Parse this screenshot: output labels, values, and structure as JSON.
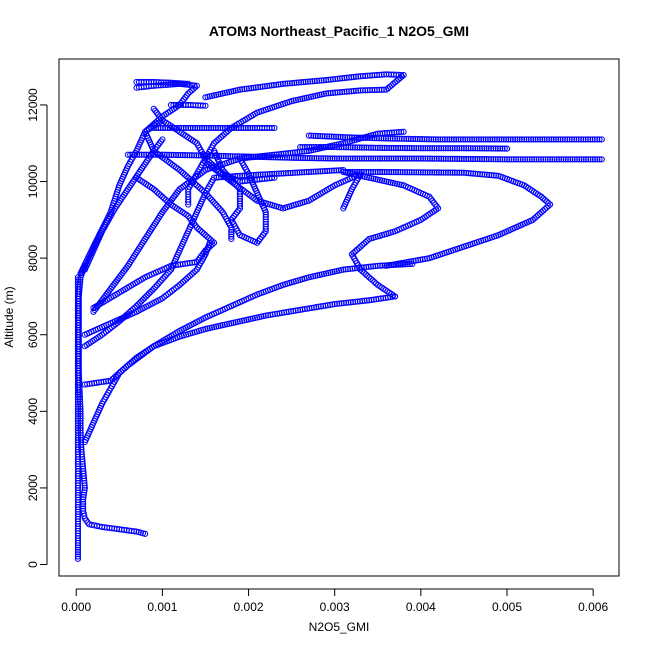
{
  "chart_data": {
    "type": "scatter",
    "title": "ATOM3 Northeast_Pacific_1 N2O5_GMI",
    "xlabel": "N2O5_GMI",
    "ylabel": "Altitude (m)",
    "xlim": [
      -0.0002,
      0.0063
    ],
    "ylim": [
      -300,
      13200
    ],
    "x_ticks": [
      0.0,
      0.001,
      0.002,
      0.003,
      0.004,
      0.005,
      0.006
    ],
    "x_tick_labels": [
      "0.000",
      "0.001",
      "0.002",
      "0.003",
      "0.004",
      "0.005",
      "0.006"
    ],
    "y_ticks": [
      0,
      2000,
      4000,
      6000,
      8000,
      10000,
      12000
    ],
    "y_tick_labels": [
      "0",
      "2000",
      "4000",
      "6000",
      "8000",
      "10000",
      "12000"
    ],
    "grid": false,
    "legend": "none",
    "marker": "open-circle",
    "color": "#0000ff",
    "series": [
      {
        "points": [
          [
            0.0008,
            800
          ],
          [
            0.0007,
            860
          ],
          [
            0.0005,
            920
          ],
          [
            0.0003,
            980
          ],
          [
            0.00015,
            1050
          ],
          [
            0.0001,
            1200
          ],
          [
            8e-05,
            1400
          ],
          [
            8e-05,
            1700
          ],
          [
            0.0001,
            2000
          ],
          [
            8e-05,
            2500
          ],
          [
            6e-05,
            3000
          ],
          [
            5e-05,
            3500
          ],
          [
            5e-05,
            4000
          ],
          [
            4e-05,
            4500
          ],
          [
            3e-05,
            5000
          ],
          [
            3e-05,
            5500
          ],
          [
            3e-05,
            6000
          ],
          [
            3e-05,
            6500
          ],
          [
            3e-05,
            7000
          ],
          [
            5e-05,
            7500
          ],
          [
            0.0001,
            7800
          ]
        ]
      },
      {
        "points": [
          [
            2e-05,
            150
          ],
          [
            2e-05,
            500
          ],
          [
            2e-05,
            1000
          ],
          [
            2e-05,
            1500
          ],
          [
            2e-05,
            2000
          ],
          [
            2e-05,
            2500
          ],
          [
            2e-05,
            3000
          ],
          [
            2e-05,
            3500
          ],
          [
            2e-05,
            4000
          ],
          [
            2e-05,
            4500
          ],
          [
            2e-05,
            5000
          ],
          [
            2e-05,
            5500
          ],
          [
            2e-05,
            6000
          ],
          [
            2e-05,
            6500
          ],
          [
            2e-05,
            7000
          ],
          [
            2e-05,
            7500
          ]
        ]
      },
      {
        "points": [
          [
            0.0001,
            3200
          ],
          [
            0.0002,
            3700
          ],
          [
            0.0003,
            4200
          ],
          [
            0.0004,
            4600
          ],
          [
            0.0005,
            5000
          ],
          [
            0.0007,
            5400
          ],
          [
            0.0009,
            5700
          ],
          [
            0.0012,
            5950
          ],
          [
            0.0015,
            6150
          ],
          [
            0.0018,
            6300
          ],
          [
            0.0022,
            6500
          ],
          [
            0.0026,
            6650
          ],
          [
            0.003,
            6800
          ],
          [
            0.0034,
            6900
          ],
          [
            0.0037,
            7000
          ]
        ]
      },
      {
        "points": [
          [
            0.0001,
            4700
          ],
          [
            0.0004,
            4800
          ],
          [
            0.0006,
            5200
          ],
          [
            0.0009,
            5700
          ],
          [
            0.0012,
            6100
          ],
          [
            0.0015,
            6450
          ],
          [
            0.0018,
            6750
          ],
          [
            0.0021,
            7050
          ],
          [
            0.0024,
            7300
          ],
          [
            0.0027,
            7500
          ],
          [
            0.0031,
            7700
          ],
          [
            0.0035,
            7800
          ],
          [
            0.0039,
            7850
          ]
        ]
      },
      {
        "points": [
          [
            0.0001,
            6000
          ],
          [
            0.0004,
            6300
          ],
          [
            0.0007,
            6600
          ],
          [
            0.001,
            6950
          ],
          [
            0.0012,
            7300
          ],
          [
            0.0014,
            7700
          ],
          [
            0.0015,
            8100
          ],
          [
            0.00155,
            8400
          ]
        ]
      },
      {
        "points": [
          [
            5e-05,
            7600
          ],
          [
            0.0002,
            8300
          ],
          [
            0.0004,
            9200
          ],
          [
            0.0005,
            9900
          ],
          [
            0.0006,
            10400
          ],
          [
            0.0007,
            10800
          ],
          [
            0.0008,
            11300
          ],
          [
            0.001,
            11700
          ],
          [
            0.0012,
            12000
          ],
          [
            0.0013,
            12300
          ],
          [
            0.0014,
            12500
          ],
          [
            0.0012,
            12550
          ],
          [
            0.0009,
            12500
          ],
          [
            0.0007,
            12450
          ]
        ]
      },
      {
        "points": [
          [
            0.0001,
            7700
          ],
          [
            0.0002,
            8200
          ],
          [
            0.0003,
            8700
          ],
          [
            0.00045,
            9300
          ],
          [
            0.0006,
            9800
          ],
          [
            0.00075,
            10300
          ],
          [
            0.0009,
            10800
          ],
          [
            0.001,
            11100
          ]
        ]
      },
      {
        "points": [
          [
            0.0002,
            6600
          ],
          [
            0.0004,
            7200
          ],
          [
            0.0006,
            7800
          ],
          [
            0.0008,
            8500
          ],
          [
            0.001,
            9200
          ],
          [
            0.0012,
            9800
          ],
          [
            0.0015,
            10300
          ],
          [
            0.0019,
            10600
          ],
          [
            0.0023,
            10700
          ],
          [
            0.0027,
            10800
          ],
          [
            0.0031,
            11000
          ],
          [
            0.0035,
            11250
          ],
          [
            0.0038,
            11300
          ]
        ]
      },
      {
        "points": [
          [
            0.0027,
            11200
          ],
          [
            0.0032,
            11150
          ],
          [
            0.0037,
            11120
          ],
          [
            0.0042,
            11100
          ],
          [
            0.0047,
            11100
          ],
          [
            0.0052,
            11100
          ],
          [
            0.0057,
            11100
          ],
          [
            0.0061,
            11100
          ]
        ]
      },
      {
        "points": [
          [
            0.0026,
            10900
          ],
          [
            0.003,
            10900
          ],
          [
            0.0035,
            10880
          ],
          [
            0.004,
            10870
          ],
          [
            0.0045,
            10870
          ],
          [
            0.005,
            10860
          ]
        ]
      },
      {
        "points": [
          [
            0.0006,
            10700
          ],
          [
            0.001,
            10700
          ],
          [
            0.0015,
            10680
          ],
          [
            0.002,
            10650
          ],
          [
            0.0025,
            10620
          ],
          [
            0.003,
            10600
          ],
          [
            0.0035,
            10600
          ],
          [
            0.004,
            10600
          ],
          [
            0.0045,
            10590
          ],
          [
            0.005,
            10580
          ],
          [
            0.0055,
            10580
          ],
          [
            0.0061,
            10580
          ]
        ]
      },
      {
        "points": [
          [
            0.0009,
            11400
          ],
          [
            0.0013,
            11400
          ],
          [
            0.0017,
            11400
          ],
          [
            0.0021,
            11400
          ],
          [
            0.0023,
            11400
          ]
        ]
      },
      {
        "points": [
          [
            0.0011,
            12000
          ],
          [
            0.0013,
            12000
          ],
          [
            0.0015,
            11980
          ]
        ]
      },
      {
        "points": [
          [
            0.0007,
            12600
          ],
          [
            0.0009,
            12600
          ],
          [
            0.0011,
            12580
          ],
          [
            0.0013,
            12550
          ]
        ]
      },
      {
        "points": [
          [
            0.0031,
            10250
          ],
          [
            0.0035,
            10250
          ],
          [
            0.004,
            10240
          ],
          [
            0.0045,
            10230
          ],
          [
            0.0049,
            10150
          ],
          [
            0.0052,
            9900
          ],
          [
            0.0054,
            9600
          ],
          [
            0.0055,
            9400
          ],
          [
            0.0053,
            9000
          ],
          [
            0.0049,
            8600
          ],
          [
            0.0045,
            8300
          ],
          [
            0.0041,
            8000
          ],
          [
            0.0036,
            7800
          ]
        ]
      },
      {
        "points": [
          [
            0.0031,
            10250
          ],
          [
            0.0034,
            10100
          ],
          [
            0.0038,
            9900
          ],
          [
            0.0041,
            9600
          ],
          [
            0.0042,
            9300
          ],
          [
            0.004,
            9000
          ],
          [
            0.0037,
            8700
          ],
          [
            0.0034,
            8500
          ],
          [
            0.0032,
            8100
          ],
          [
            0.0033,
            7700
          ],
          [
            0.0035,
            7300
          ],
          [
            0.0037,
            7000
          ]
        ]
      },
      {
        "points": [
          [
            0.0015,
            12200
          ],
          [
            0.0019,
            12400
          ],
          [
            0.0024,
            12550
          ],
          [
            0.0029,
            12650
          ],
          [
            0.0033,
            12750
          ],
          [
            0.0036,
            12800
          ],
          [
            0.0038,
            12780
          ],
          [
            0.0036,
            12400
          ],
          [
            0.0033,
            12380
          ],
          [
            0.0029,
            12300
          ],
          [
            0.0025,
            12100
          ],
          [
            0.0021,
            11800
          ],
          [
            0.0018,
            11400
          ],
          [
            0.0016,
            11000
          ],
          [
            0.0015,
            10600
          ],
          [
            0.0014,
            10200
          ],
          [
            0.0013,
            9800
          ],
          [
            0.0013,
            9400
          ]
        ]
      },
      {
        "points": [
          [
            0.0007,
            10100
          ],
          [
            0.0009,
            9800
          ],
          [
            0.0011,
            9400
          ],
          [
            0.0013,
            9100
          ],
          [
            0.0014,
            8800
          ],
          [
            0.0015,
            8600
          ],
          [
            0.0016,
            8400
          ],
          [
            0.0015,
            8200
          ],
          [
            0.0014,
            7900
          ],
          [
            0.0011,
            7800
          ],
          [
            0.0008,
            7500
          ],
          [
            0.0005,
            7100
          ],
          [
            0.0002,
            6700
          ]
        ]
      },
      {
        "points": [
          [
            0.0015,
            10500
          ],
          [
            0.0018,
            10000
          ],
          [
            0.0021,
            9500
          ],
          [
            0.0024,
            9300
          ],
          [
            0.0027,
            9500
          ],
          [
            0.003,
            9900
          ],
          [
            0.0033,
            10200
          ],
          [
            0.0032,
            9800
          ],
          [
            0.0031,
            9300
          ]
        ]
      },
      {
        "points": [
          [
            0.0016,
            10800
          ],
          [
            0.0017,
            10300
          ],
          [
            0.0019,
            9800
          ],
          [
            0.0019,
            9300
          ],
          [
            0.0018,
            9000
          ],
          [
            0.0019,
            8600
          ],
          [
            0.0021,
            8400
          ],
          [
            0.0022,
            8700
          ],
          [
            0.0022,
            9200
          ],
          [
            0.0021,
            9700
          ],
          [
            0.002,
            10200
          ],
          [
            0.0019,
            10600
          ]
        ]
      },
      {
        "points": [
          [
            0.001,
            11600
          ],
          [
            0.0008,
            11300
          ],
          [
            0.0009,
            10800
          ],
          [
            0.0012,
            10300
          ],
          [
            0.0015,
            9700
          ],
          [
            0.0017,
            9200
          ],
          [
            0.0018,
            8800
          ],
          [
            0.0018,
            8500
          ]
        ]
      },
      {
        "points": [
          [
            0.0009,
            11900
          ],
          [
            0.001,
            11600
          ],
          [
            0.0012,
            11300
          ],
          [
            0.0014,
            11000
          ],
          [
            0.0015,
            10600
          ],
          [
            0.0017,
            10200
          ],
          [
            0.0019,
            10000
          ],
          [
            0.0021,
            10050
          ],
          [
            0.0023,
            10100
          ]
        ]
      },
      {
        "points": [
          [
            0.0001,
            5700
          ],
          [
            0.0003,
            6000
          ],
          [
            0.0005,
            6350
          ],
          [
            0.0007,
            6750
          ],
          [
            0.0009,
            7200
          ],
          [
            0.0011,
            7700
          ],
          [
            0.0012,
            8200
          ],
          [
            0.0013,
            8700
          ],
          [
            0.0014,
            9200
          ],
          [
            0.0015,
            9700
          ],
          [
            0.0016,
            10100
          ],
          [
            0.0019,
            10150
          ],
          [
            0.0023,
            10200
          ],
          [
            0.0027,
            10250
          ],
          [
            0.0031,
            10300
          ]
        ]
      }
    ]
  }
}
